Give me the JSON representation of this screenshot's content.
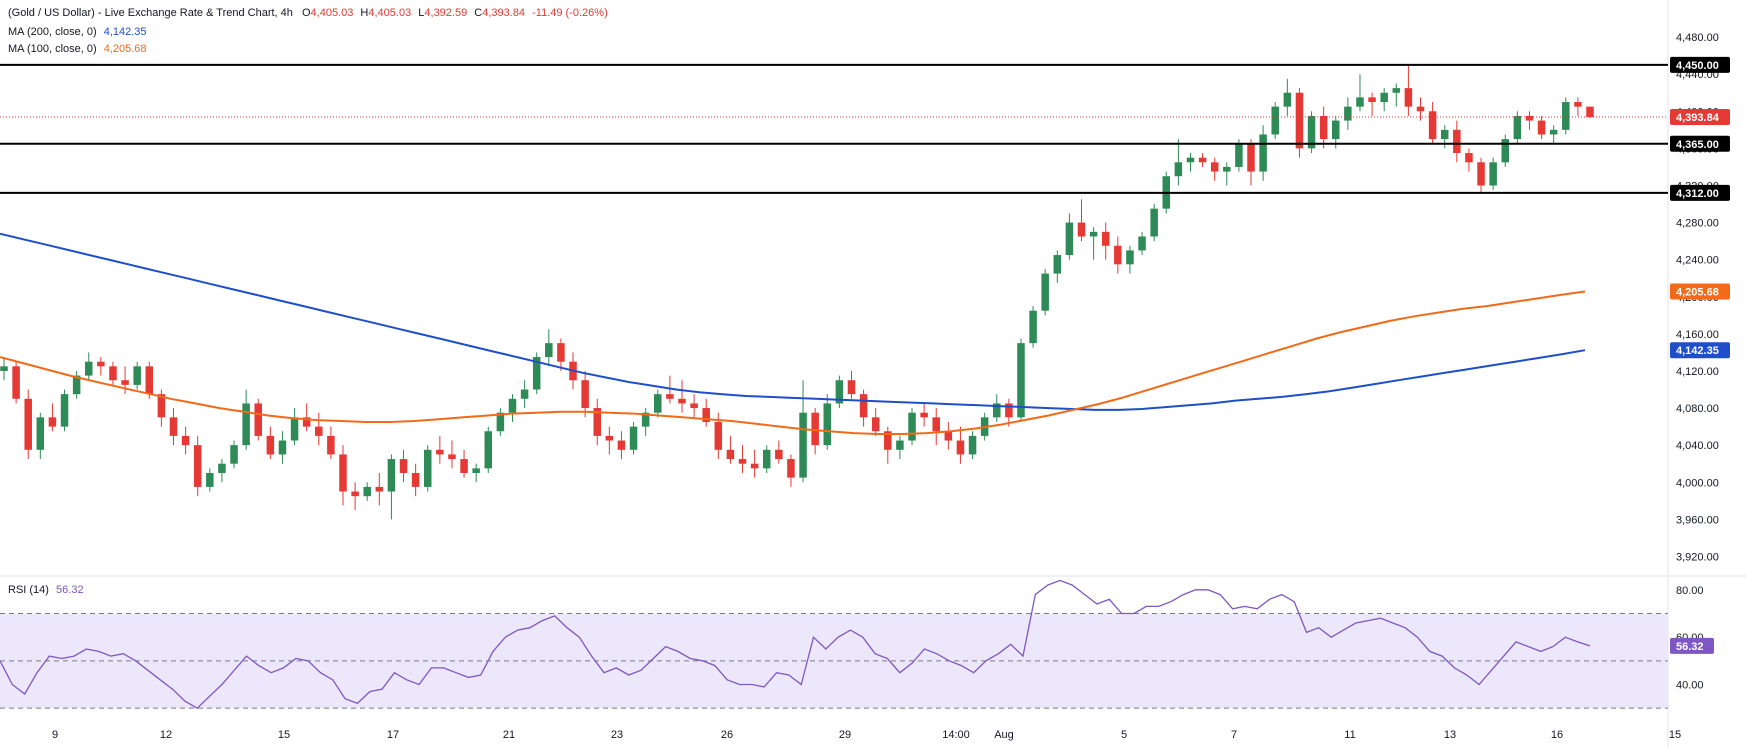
{
  "legend": {
    "title": "(Gold / US Dollar) - Live Exchange Rate & Trend Chart, 4h",
    "o_label": "O",
    "o": "4,405.03",
    "h_label": "H",
    "h": "4,405.03",
    "l_label": "L",
    "l": "4,392.59",
    "c_label": "C",
    "c": "4,393.84",
    "change": "-11.49 (-0.26%)",
    "ma200_label": "MA (200, close, 0)",
    "ma200_value": "4,142.35",
    "ma100_label": "MA (100, close, 0)",
    "ma100_value": "4,205.68",
    "rsi_label": "RSI (14)",
    "rsi_value": "56.32"
  },
  "colors": {
    "up": "#26a69a",
    "up_body": "#2e8b57",
    "down": "#e53935",
    "ma200": "#1e4fc8",
    "ma100": "#f26a18",
    "rsi": "#7e57c2",
    "rsi_band": "#ede7fb",
    "level": "#000000",
    "last": "#e53935"
  },
  "chart_data": [
    {
      "type": "candlestick",
      "title": "(Gold / US Dollar) - Live Exchange Rate & Trend Chart, 4h",
      "ylim": [
        3900,
        4520
      ],
      "y_ticks": [
        3920,
        3960,
        4000,
        4040,
        4080,
        4120,
        4160,
        4200,
        4240,
        4280,
        4320,
        4360,
        4400,
        4440,
        4480
      ],
      "y_tick_labels": [
        "3,920.00",
        "3,960.00",
        "4,000.00",
        "4,040.00",
        "4,080.00",
        "4,120.00",
        "4,160.00",
        "4,200.00",
        "4,240.00",
        "4,280.00",
        "4,320.00",
        "4,360.00",
        "4,400.00",
        "4,440.00",
        "4,480.00"
      ],
      "x_tick_labels": [
        "9",
        "12",
        "15",
        "17",
        "21",
        "23",
        "26",
        "29",
        "14:00",
        "Aug",
        "5",
        "7",
        "11",
        "13",
        "16",
        "15"
      ],
      "horizontal_levels": [
        {
          "value": 4450,
          "label": "4,450.00"
        },
        {
          "value": 4365,
          "label": "4,365.00"
        },
        {
          "value": 4312,
          "label": "4,312.00"
        }
      ],
      "last_price": {
        "value": 4393.84,
        "label": "4,393.84"
      },
      "ohlc": [
        [
          4120,
          4135,
          4110,
          4125
        ],
        [
          4125,
          4130,
          4085,
          4090
        ],
        [
          4090,
          4100,
          4025,
          4035
        ],
        [
          4035,
          4075,
          4025,
          4070
        ],
        [
          4070,
          4085,
          4055,
          4060
        ],
        [
          4060,
          4100,
          4055,
          4095
        ],
        [
          4095,
          4120,
          4090,
          4115
        ],
        [
          4115,
          4140,
          4110,
          4130
        ],
        [
          4130,
          4135,
          4115,
          4125
        ],
        [
          4125,
          4130,
          4105,
          4110
        ],
        [
          4110,
          4125,
          4095,
          4105
        ],
        [
          4105,
          4130,
          4100,
          4125
        ],
        [
          4125,
          4130,
          4090,
          4095
        ],
        [
          4095,
          4100,
          4060,
          4070
        ],
        [
          4070,
          4080,
          4040,
          4050
        ],
        [
          4050,
          4060,
          4030,
          4040
        ],
        [
          4040,
          4050,
          3985,
          3995
        ],
        [
          3995,
          4015,
          3990,
          4010
        ],
        [
          4010,
          4025,
          4000,
          4020
        ],
        [
          4020,
          4045,
          4015,
          4040
        ],
        [
          4040,
          4100,
          4035,
          4085
        ],
        [
          4085,
          4090,
          4045,
          4050
        ],
        [
          4050,
          4060,
          4025,
          4030
        ],
        [
          4030,
          4055,
          4020,
          4045
        ],
        [
          4045,
          4080,
          4040,
          4070
        ],
        [
          4070,
          4085,
          4055,
          4060
        ],
        [
          4060,
          4075,
          4040,
          4050
        ],
        [
          4050,
          4060,
          4025,
          4030
        ],
        [
          4030,
          4040,
          3975,
          3990
        ],
        [
          3990,
          4000,
          3970,
          3985
        ],
        [
          3985,
          4000,
          3980,
          3995
        ],
        [
          3995,
          4010,
          3975,
          3990
        ],
        [
          3990,
          4030,
          3960,
          4025
        ],
        [
          4025,
          4035,
          4000,
          4010
        ],
        [
          4010,
          4020,
          3985,
          3995
        ],
        [
          3995,
          4040,
          3990,
          4035
        ],
        [
          4035,
          4050,
          4020,
          4030
        ],
        [
          4030,
          4045,
          4015,
          4025
        ],
        [
          4025,
          4035,
          4005,
          4010
        ],
        [
          4010,
          4020,
          4000,
          4015
        ],
        [
          4015,
          4060,
          4010,
          4055
        ],
        [
          4055,
          4080,
          4050,
          4075
        ],
        [
          4075,
          4095,
          4065,
          4090
        ],
        [
          4090,
          4110,
          4080,
          4100
        ],
        [
          4100,
          4140,
          4095,
          4135
        ],
        [
          4135,
          4165,
          4125,
          4150
        ],
        [
          4150,
          4155,
          4120,
          4130
        ],
        [
          4130,
          4140,
          4100,
          4110
        ],
        [
          4110,
          4120,
          4070,
          4080
        ],
        [
          4080,
          4090,
          4040,
          4050
        ],
        [
          4050,
          4060,
          4030,
          4045
        ],
        [
          4045,
          4055,
          4025,
          4035
        ],
        [
          4035,
          4065,
          4030,
          4060
        ],
        [
          4060,
          4080,
          4050,
          4075
        ],
        [
          4075,
          4100,
          4070,
          4095
        ],
        [
          4095,
          4115,
          4085,
          4090
        ],
        [
          4090,
          4110,
          4075,
          4085
        ],
        [
          4085,
          4095,
          4070,
          4080
        ],
        [
          4080,
          4090,
          4060,
          4065
        ],
        [
          4065,
          4075,
          4025,
          4035
        ],
        [
          4035,
          4050,
          4020,
          4025
        ],
        [
          4025,
          4040,
          4010,
          4020
        ],
        [
          4020,
          4035,
          4005,
          4015
        ],
        [
          4015,
          4040,
          4010,
          4035
        ],
        [
          4035,
          4045,
          4020,
          4025
        ],
        [
          4025,
          4030,
          3995,
          4005
        ],
        [
          4005,
          4110,
          4000,
          4075
        ],
        [
          4075,
          4080,
          4030,
          4040
        ],
        [
          4040,
          4095,
          4035,
          4085
        ],
        [
          4085,
          4115,
          4080,
          4110
        ],
        [
          4110,
          4120,
          4090,
          4095
        ],
        [
          4095,
          4100,
          4060,
          4070
        ],
        [
          4070,
          4080,
          4050,
          4055
        ],
        [
          4055,
          4060,
          4020,
          4035
        ],
        [
          4035,
          4050,
          4025,
          4045
        ],
        [
          4045,
          4080,
          4040,
          4075
        ],
        [
          4075,
          4085,
          4060,
          4070
        ],
        [
          4070,
          4080,
          4040,
          4055
        ],
        [
          4055,
          4065,
          4035,
          4045
        ],
        [
          4045,
          4060,
          4020,
          4030
        ],
        [
          4030,
          4055,
          4025,
          4050
        ],
        [
          4050,
          4075,
          4045,
          4070
        ],
        [
          4070,
          4095,
          4065,
          4085
        ],
        [
          4085,
          4090,
          4060,
          4070
        ],
        [
          4070,
          4155,
          4065,
          4150
        ],
        [
          4150,
          4190,
          4145,
          4185
        ],
        [
          4185,
          4230,
          4180,
          4225
        ],
        [
          4225,
          4250,
          4215,
          4245
        ],
        [
          4245,
          4290,
          4240,
          4280
        ],
        [
          4280,
          4305,
          4260,
          4265
        ],
        [
          4265,
          4275,
          4240,
          4270
        ],
        [
          4270,
          4280,
          4240,
          4255
        ],
        [
          4255,
          4265,
          4225,
          4235
        ],
        [
          4235,
          4255,
          4225,
          4250
        ],
        [
          4250,
          4270,
          4245,
          4265
        ],
        [
          4265,
          4300,
          4260,
          4295
        ],
        [
          4295,
          4335,
          4290,
          4330
        ],
        [
          4330,
          4370,
          4320,
          4345
        ],
        [
          4345,
          4355,
          4335,
          4350
        ],
        [
          4350,
          4355,
          4340,
          4345
        ],
        [
          4345,
          4350,
          4325,
          4335
        ],
        [
          4335,
          4345,
          4320,
          4340
        ],
        [
          4340,
          4370,
          4335,
          4365
        ],
        [
          4365,
          4370,
          4320,
          4335
        ],
        [
          4335,
          4385,
          4325,
          4375
        ],
        [
          4375,
          4410,
          4370,
          4405
        ],
        [
          4405,
          4435,
          4395,
          4420
        ],
        [
          4420,
          4425,
          4350,
          4360
        ],
        [
          4360,
          4400,
          4355,
          4395
        ],
        [
          4395,
          4405,
          4360,
          4370
        ],
        [
          4370,
          4395,
          4360,
          4390
        ],
        [
          4390,
          4415,
          4380,
          4405
        ],
        [
          4405,
          4440,
          4400,
          4415
        ],
        [
          4415,
          4420,
          4395,
          4410
        ],
        [
          4410,
          4425,
          4400,
          4420
        ],
        [
          4420,
          4430,
          4405,
          4425
        ],
        [
          4425,
          4450,
          4395,
          4405
        ],
        [
          4405,
          4415,
          4390,
          4400
        ],
        [
          4400,
          4410,
          4365,
          4370
        ],
        [
          4370,
          4385,
          4360,
          4380
        ],
        [
          4380,
          4390,
          4345,
          4355
        ],
        [
          4355,
          4360,
          4335,
          4345
        ],
        [
          4345,
          4350,
          4312,
          4320
        ],
        [
          4320,
          4350,
          4315,
          4345
        ],
        [
          4345,
          4375,
          4340,
          4370
        ],
        [
          4370,
          4400,
          4365,
          4395
        ],
        [
          4395,
          4400,
          4380,
          4390
        ],
        [
          4390,
          4395,
          4370,
          4375
        ],
        [
          4375,
          4385,
          4365,
          4380
        ],
        [
          4380,
          4415,
          4375,
          4410
        ],
        [
          4410,
          4415,
          4395,
          4405
        ],
        [
          4405,
          4405,
          4392.59,
          4393.84
        ]
      ],
      "series": [
        {
          "name": "MA (200, close, 0)",
          "values": [
            4268,
            4262,
            4256,
            4250,
            4244,
            4238,
            4232,
            4226,
            4220,
            4214,
            4208,
            4202,
            4196,
            4190,
            4184,
            4178,
            4172,
            4166,
            4160,
            4154,
            4148,
            4142,
            4136,
            4130,
            4124,
            4118,
            4113,
            4108,
            4104,
            4100,
            4097,
            4095,
            4093,
            4092,
            4091,
            4090,
            4089,
            4088,
            4087,
            4086,
            4085,
            4084,
            4083,
            4082,
            4081,
            4080,
            4079,
            4078,
            4078,
            4079,
            4081,
            4083,
            4085,
            4088,
            4090,
            4092,
            4095,
            4098,
            4102,
            4106,
            4110,
            4114,
            4118,
            4122,
            4126,
            4130,
            4134,
            4138,
            4142.35
          ]
        },
        {
          "name": "MA (100, close, 0)",
          "values": [
            4135,
            4128,
            4121,
            4114,
            4108,
            4102,
            4096,
            4090,
            4085,
            4080,
            4076,
            4072,
            4069,
            4067,
            4066,
            4065,
            4065,
            4066,
            4068,
            4070,
            4072,
            4074,
            4075,
            4076,
            4076,
            4075,
            4074,
            4072,
            4070,
            4068,
            4066,
            4063,
            4060,
            4057,
            4055,
            4053,
            4052,
            4052,
            4053,
            4055,
            4058,
            4062,
            4067,
            4072,
            4078,
            4084,
            4091,
            4099,
            4107,
            4115,
            4123,
            4131,
            4139,
            4147,
            4155,
            4162,
            4168,
            4174,
            4179,
            4183,
            4187,
            4190,
            4194,
            4198,
            4202,
            4205.68
          ]
        }
      ]
    },
    {
      "type": "line",
      "title": "RSI (14)",
      "ylim": [
        25,
        85
      ],
      "y_ticks": [
        40,
        60,
        80
      ],
      "y_tick_labels": [
        "40.00",
        "60.00",
        "80.00"
      ],
      "bands": [
        30,
        50,
        70
      ],
      "last_value": {
        "value": 56.32,
        "label": "56.32"
      },
      "series": [
        {
          "name": "RSI (14)",
          "values": [
            50,
            40,
            36,
            45,
            52,
            51,
            52,
            55,
            54,
            52,
            53,
            50,
            46,
            42,
            38,
            33,
            30,
            35,
            40,
            46,
            52,
            48,
            45,
            47,
            51,
            50,
            45,
            42,
            34,
            32,
            37,
            38,
            45,
            42,
            40,
            47,
            47,
            45,
            43,
            44,
            54,
            60,
            63,
            64,
            67,
            69,
            64,
            60,
            52,
            45,
            47,
            44,
            46,
            51,
            56,
            54,
            51,
            50,
            48,
            42,
            40,
            40,
            39,
            45,
            44,
            40,
            60,
            55,
            60,
            63,
            60,
            53,
            51,
            45,
            49,
            55,
            53,
            50,
            48,
            45,
            50,
            53,
            57,
            52,
            78,
            82,
            84,
            82,
            78,
            74,
            76,
            70,
            70,
            73,
            73,
            75,
            78,
            80,
            80,
            78,
            72,
            73,
            72,
            76,
            78,
            75,
            62,
            64,
            60,
            63,
            66,
            67,
            68,
            66,
            64,
            60,
            54,
            52,
            47,
            44,
            40,
            46,
            52,
            58,
            56,
            54,
            56,
            60,
            58,
            56.32
          ]
        }
      ]
    }
  ]
}
